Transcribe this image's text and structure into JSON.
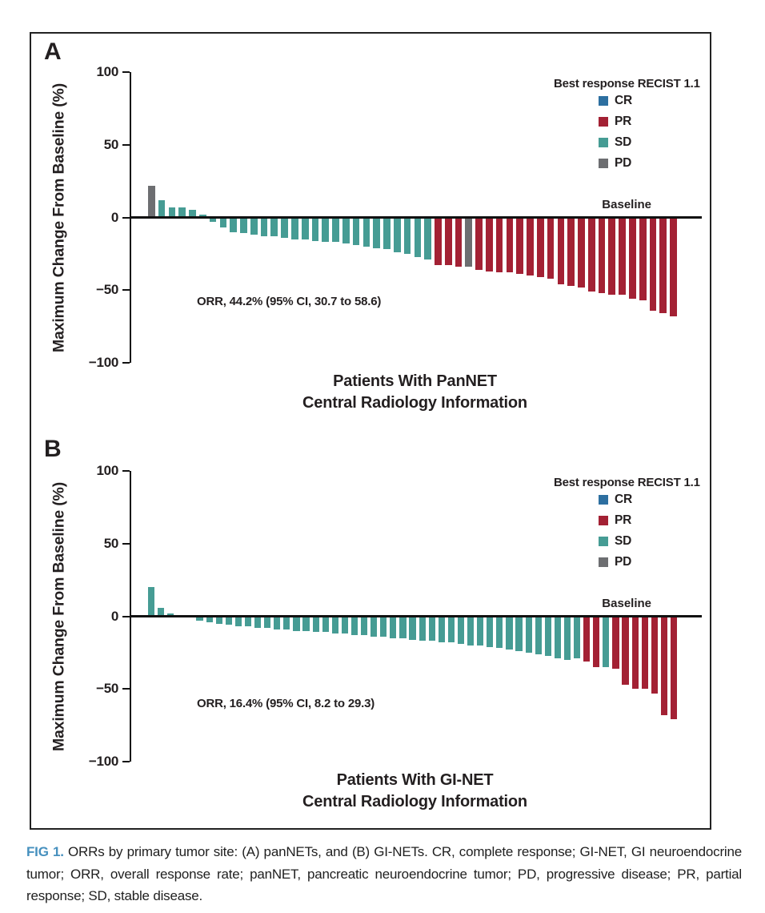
{
  "figure": {
    "panel_labels": [
      "A",
      "B"
    ],
    "caption_label": "FIG 1.",
    "caption_text": "ORRs by primary tumor site: (A) panNETs, and (B) GI-NETs. CR, complete response; GI-NET, GI neuroendocrine tumor; ORR, overall response rate; panNET, pancreatic neuroendocrine tumor; PD, progressive disease; PR, partial response; SD, stable disease.",
    "caption_label_color": "#4690be"
  },
  "chart_data": [
    {
      "type": "bar",
      "panel": "A",
      "title": "",
      "xlabel_line1": "Patients With PanNET",
      "xlabel_line2": "Central Radiology Information",
      "ylabel": "Maximum Change From Baseline (%)",
      "ylim": [
        -100,
        100
      ],
      "ytick_labels": [
        "100",
        "50",
        "0",
        "−50",
        "−100"
      ],
      "baseline_label": "Baseline",
      "orr": "ORR, 44.2% (95% CI, 30.7 to 58.6)",
      "legend_title": "Best response RECIST 1.1",
      "legend_items": [
        {
          "label": "CR",
          "color": "#2d6fa0"
        },
        {
          "label": "PR",
          "color": "#a32134"
        },
        {
          "label": "SD",
          "color": "#469c94"
        },
        {
          "label": "PD",
          "color": "#6d6e71"
        }
      ],
      "bars": [
        [
          22,
          "PD"
        ],
        [
          12,
          "SD"
        ],
        [
          7,
          "SD"
        ],
        [
          7,
          "SD"
        ],
        [
          5,
          "SD"
        ],
        [
          2,
          "SD"
        ],
        [
          -3,
          "SD"
        ],
        [
          -7,
          "SD"
        ],
        [
          -10,
          "SD"
        ],
        [
          -11,
          "SD"
        ],
        [
          -12,
          "SD"
        ],
        [
          -13,
          "SD"
        ],
        [
          -13,
          "SD"
        ],
        [
          -14,
          "SD"
        ],
        [
          -15,
          "SD"
        ],
        [
          -15,
          "SD"
        ],
        [
          -16,
          "SD"
        ],
        [
          -17,
          "SD"
        ],
        [
          -17,
          "SD"
        ],
        [
          -18,
          "SD"
        ],
        [
          -19,
          "SD"
        ],
        [
          -20,
          "SD"
        ],
        [
          -21,
          "SD"
        ],
        [
          -22,
          "SD"
        ],
        [
          -24,
          "SD"
        ],
        [
          -25,
          "SD"
        ],
        [
          -27,
          "SD"
        ],
        [
          -29,
          "SD"
        ],
        [
          -33,
          "PR"
        ],
        [
          -33,
          "PR"
        ],
        [
          -34,
          "PR"
        ],
        [
          -34,
          "PD"
        ],
        [
          -36,
          "PR"
        ],
        [
          -37,
          "PR"
        ],
        [
          -38,
          "PR"
        ],
        [
          -38,
          "PR"
        ],
        [
          -39,
          "PR"
        ],
        [
          -40,
          "PR"
        ],
        [
          -41,
          "PR"
        ],
        [
          -42,
          "PR"
        ],
        [
          -46,
          "PR"
        ],
        [
          -47,
          "PR"
        ],
        [
          -48,
          "PR"
        ],
        [
          -51,
          "PR"
        ],
        [
          -52,
          "PR"
        ],
        [
          -53,
          "PR"
        ],
        [
          -53,
          "PR"
        ],
        [
          -56,
          "PR"
        ],
        [
          -57,
          "PR"
        ],
        [
          -64,
          "PR"
        ],
        [
          -66,
          "PR"
        ],
        [
          -68,
          "PR"
        ]
      ]
    },
    {
      "type": "bar",
      "panel": "B",
      "title": "",
      "xlabel_line1": "Patients With GI-NET",
      "xlabel_line2": "Central Radiology Information",
      "ylabel": "Maximum Change From Baseline (%)",
      "ylim": [
        -100,
        100
      ],
      "ytick_labels": [
        "100",
        "50",
        "0",
        "−50",
        "−100"
      ],
      "baseline_label": "Baseline",
      "orr": "ORR, 16.4% (95% CI, 8.2 to 29.3)",
      "legend_title": "Best response RECIST 1.1",
      "legend_items": [
        {
          "label": "CR",
          "color": "#2d6fa0"
        },
        {
          "label": "PR",
          "color": "#a32134"
        },
        {
          "label": "SD",
          "color": "#469c94"
        },
        {
          "label": "PD",
          "color": "#6d6e71"
        }
      ],
      "bars": [
        [
          20,
          "SD"
        ],
        [
          6,
          "SD"
        ],
        [
          2,
          "SD"
        ],
        [
          1,
          "SD"
        ],
        [
          -1,
          "SD"
        ],
        [
          -3,
          "SD"
        ],
        [
          -4,
          "SD"
        ],
        [
          -5,
          "SD"
        ],
        [
          -6,
          "SD"
        ],
        [
          -7,
          "SD"
        ],
        [
          -7,
          "SD"
        ],
        [
          -8,
          "SD"
        ],
        [
          -8,
          "SD"
        ],
        [
          -9,
          "SD"
        ],
        [
          -9,
          "SD"
        ],
        [
          -10,
          "SD"
        ],
        [
          -10,
          "SD"
        ],
        [
          -11,
          "SD"
        ],
        [
          -11,
          "SD"
        ],
        [
          -12,
          "SD"
        ],
        [
          -12,
          "SD"
        ],
        [
          -13,
          "SD"
        ],
        [
          -13,
          "SD"
        ],
        [
          -14,
          "SD"
        ],
        [
          -14,
          "SD"
        ],
        [
          -15,
          "SD"
        ],
        [
          -15,
          "SD"
        ],
        [
          -16,
          "SD"
        ],
        [
          -17,
          "SD"
        ],
        [
          -17,
          "SD"
        ],
        [
          -18,
          "SD"
        ],
        [
          -18,
          "SD"
        ],
        [
          -19,
          "SD"
        ],
        [
          -20,
          "SD"
        ],
        [
          -20,
          "SD"
        ],
        [
          -21,
          "SD"
        ],
        [
          -22,
          "SD"
        ],
        [
          -23,
          "SD"
        ],
        [
          -24,
          "SD"
        ],
        [
          -25,
          "SD"
        ],
        [
          -26,
          "SD"
        ],
        [
          -27,
          "SD"
        ],
        [
          -29,
          "SD"
        ],
        [
          -30,
          "SD"
        ],
        [
          -29,
          "SD"
        ],
        [
          -31,
          "PR"
        ],
        [
          -35,
          "PR"
        ],
        [
          -35,
          "SD"
        ],
        [
          -36,
          "PR"
        ],
        [
          -47,
          "PR"
        ],
        [
          -50,
          "PR"
        ],
        [
          -50,
          "PR"
        ],
        [
          -53,
          "PR"
        ],
        [
          -68,
          "PR"
        ],
        [
          -71,
          "PR"
        ]
      ]
    }
  ]
}
